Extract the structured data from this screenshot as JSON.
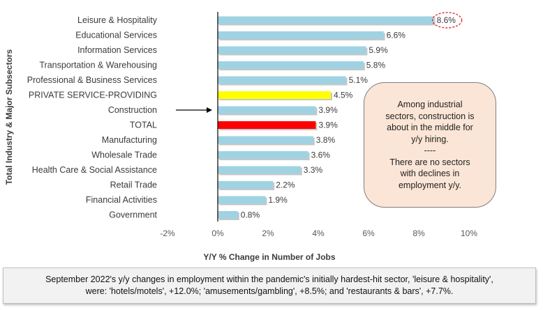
{
  "chart_data": {
    "type": "bar",
    "orientation": "horizontal",
    "categories": [
      "Leisure & Hospitality",
      "Educational Services",
      "Information Services",
      "Transportation & Warehousing",
      "Professional & Business Services",
      "PRIVATE SERVICE-PROVIDING",
      "Construction",
      "TOTAL",
      "Manufacturing",
      "Wholesale Trade",
      "Health Care & Social Assistance",
      "Retail Trade",
      "Financial Activities",
      "Government"
    ],
    "values": [
      8.6,
      6.6,
      5.9,
      5.8,
      5.1,
      4.5,
      3.9,
      3.9,
      3.8,
      3.6,
      3.3,
      2.2,
      1.9,
      0.8
    ],
    "value_labels": [
      "8.6%",
      "6.6%",
      "5.9%",
      "5.8%",
      "5.1%",
      "4.5%",
      "3.9%",
      "3.9%",
      "3.8%",
      "3.6%",
      "3.3%",
      "2.2%",
      "1.9%",
      "0.8%"
    ],
    "bar_colors": [
      "#9fd3e3",
      "#9fd3e3",
      "#9fd3e3",
      "#9fd3e3",
      "#9fd3e3",
      "#ffff00",
      "#9fd3e3",
      "#ff0000",
      "#9fd3e3",
      "#9fd3e3",
      "#9fd3e3",
      "#9fd3e3",
      "#9fd3e3",
      "#9fd3e3"
    ],
    "xlim": [
      -2,
      10
    ],
    "x_ticks": [
      -2,
      0,
      2,
      4,
      6,
      8,
      10
    ],
    "x_tick_labels": [
      "-2%",
      "0%",
      "2%",
      "4%",
      "6%",
      "8%",
      "10%"
    ],
    "xlabel": "Y/Y % Change in Number of Jobs",
    "ylabel": "Total Industry & Major Subsectors",
    "grid": false,
    "legend": "none",
    "highlight_circle_category": "Leisure & Hospitality",
    "arrow_category": "Construction"
  },
  "callout": {
    "lines": [
      "Among industrial",
      "sectors, construction is",
      "about in the middle for",
      "y/y hiring.",
      "----",
      "There are no sectors",
      "with declines in",
      "employment y/y."
    ]
  },
  "footnote": {
    "line1": "September 2022's y/y changes in employment within the pandemic's initially hardest-hit sector, 'leisure & hospitality',",
    "line2": "were: 'hotels/motels', +12.0%; 'amusements/gambling', +8.5%; and 'restaurants & bars', +7.7%."
  },
  "colors": {
    "bar_default": "#9fd3e3",
    "bar_private_service": "#ffff00",
    "bar_total": "#ff0000",
    "callout_fill": "#fbe5d6",
    "highlight_circle": "#e03030"
  }
}
